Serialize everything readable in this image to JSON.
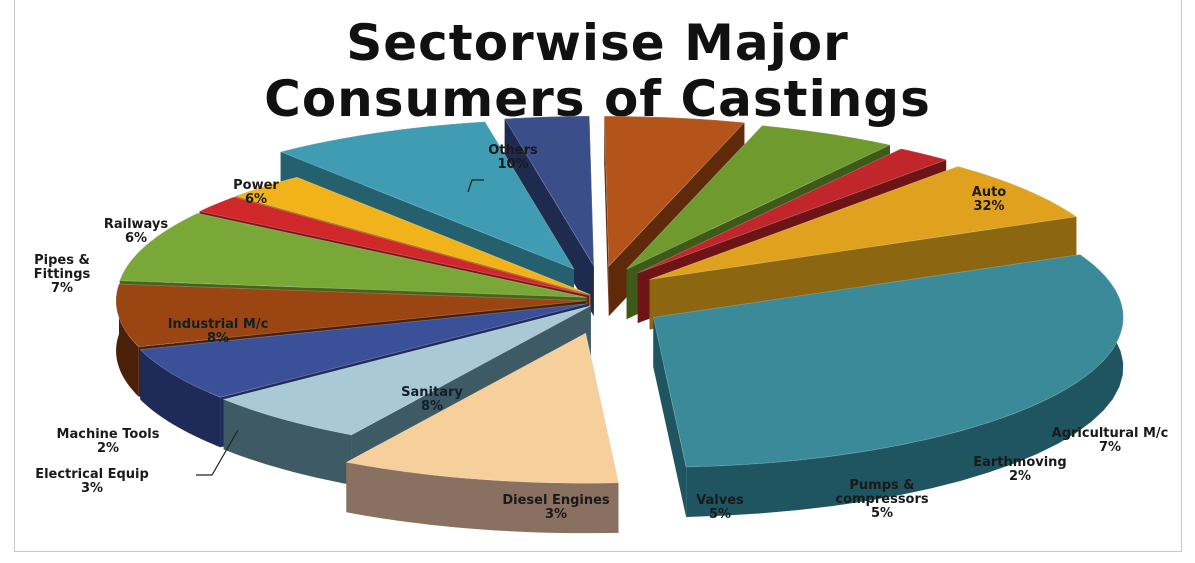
{
  "chart_data": {
    "type": "pie",
    "title_lines": [
      "Sectorwise Major",
      "Consumers of Castings"
    ],
    "slices": [
      {
        "name": "Auto",
        "value": 32,
        "label": "32%",
        "color": "#3a8a99",
        "side": "#1e5560",
        "explode": 1
      },
      {
        "name": "Agricultural M/c",
        "value": 7,
        "label": "7%",
        "color": "#e0a21e",
        "side": "#8c6610",
        "explode": 1
      },
      {
        "name": "Earthmoving",
        "value": 2,
        "label": "2%",
        "color": "#c0262a",
        "side": "#6e1416",
        "explode": 1
      },
      {
        "name": "Pumps & compressors",
        "value": 5,
        "label": "5%",
        "color": "#6e9a2e",
        "side": "#3d5a18",
        "explode": 1
      },
      {
        "name": "Valves",
        "value": 5,
        "label": "5%",
        "color": "#b5541a",
        "side": "#5e2a0a",
        "explode": 1
      },
      {
        "name": "Diesel Engines",
        "value": 3,
        "label": "3%",
        "color": "#3a4f8a",
        "side": "#1e2a4e",
        "explode": 1
      },
      {
        "name": "Sanitary",
        "value": 8,
        "label": "8%",
        "color": "#3f9cb2",
        "side": "#24606e",
        "explode": 1
      },
      {
        "name": "Electrical Equip",
        "value": 3,
        "label": "3%",
        "color": "#f2b21a",
        "side": "#9a700e",
        "explode": 0
      },
      {
        "name": "Machine Tools",
        "value": 2,
        "label": "2%",
        "color": "#d0272b",
        "side": "#7a1618",
        "explode": 0
      },
      {
        "name": "Industrial M/c",
        "value": 8,
        "label": "8%",
        "color": "#7aa838",
        "side": "#46641c",
        "explode": 0
      },
      {
        "name": "Pipes & Fittings",
        "value": 7,
        "label": "7%",
        "color": "#9a4512",
        "side": "#4a2008",
        "explode": 0
      },
      {
        "name": "Railways",
        "value": 6,
        "label": "6%",
        "color": "#3a5098",
        "side": "#1e2a58",
        "explode": 0
      },
      {
        "name": "Power",
        "value": 6,
        "label": "6%",
        "color": "#a9c9d6",
        "side": "#3e5a64",
        "explode": 0
      },
      {
        "name": "Others",
        "value": 10,
        "label": "10%",
        "color": "#f6cf9a",
        "side": "#8a7060",
        "explode": 1
      }
    ]
  }
}
